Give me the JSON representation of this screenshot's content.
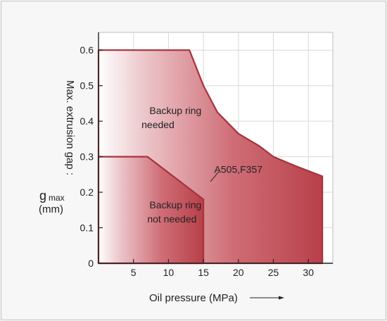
{
  "chart_data": {
    "type": "area",
    "xlabel": "Oil pressure (MPa)",
    "ylabel": "Max. extrusion gap :",
    "ylabel_symbol": "g",
    "ylabel_symbol_sub": "max",
    "ylabel_unit": "(mm)",
    "xlim": [
      0,
      33.5
    ],
    "ylim": [
      0,
      0.65
    ],
    "x_ticks": [
      5,
      10,
      15,
      20,
      25,
      30
    ],
    "y_ticks": [
      0,
      0.1,
      0.2,
      0.3,
      0.4,
      0.5,
      0.6
    ],
    "grid": true,
    "series": [
      {
        "name": "Backup ring needed",
        "values": [
          [
            0,
            0.6
          ],
          [
            13,
            0.6
          ],
          [
            15,
            0.5
          ],
          [
            17,
            0.425
          ],
          [
            20,
            0.365
          ],
          [
            23,
            0.33
          ],
          [
            25,
            0.3
          ],
          [
            28,
            0.275
          ],
          [
            30,
            0.26
          ],
          [
            32,
            0.245
          ],
          [
            32,
            0
          ]
        ]
      },
      {
        "name": "Backup ring not needed",
        "values": [
          [
            0,
            0.3
          ],
          [
            7,
            0.3
          ],
          [
            15,
            0.18
          ],
          [
            15,
            0
          ]
        ]
      }
    ],
    "annotations": [
      {
        "text": "Backup ring",
        "x": 11,
        "y": 0.42
      },
      {
        "text": "needed",
        "x": 8.5,
        "y": 0.38
      },
      {
        "text": "Backup ring",
        "x": 11,
        "y": 0.155
      },
      {
        "text": "not needed",
        "x": 10.5,
        "y": 0.115
      },
      {
        "text": "A505,F357",
        "x": 20,
        "y": 0.255
      }
    ],
    "colors": {
      "fill": "#b8404a",
      "edge": "#a8323c",
      "background": "#f7f7f7",
      "grid": "#d9d9d9"
    }
  }
}
